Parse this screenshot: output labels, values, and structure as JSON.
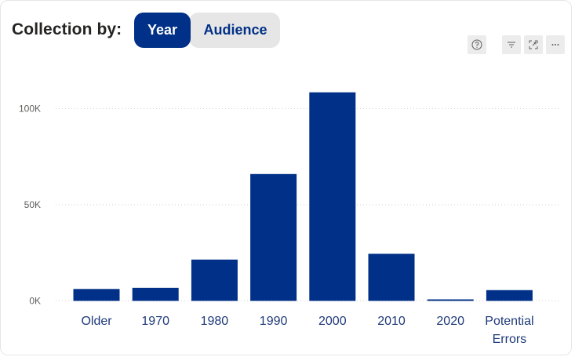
{
  "header": {
    "label": "Collection by:",
    "options": [
      {
        "label": "Year",
        "active": true
      },
      {
        "label": "Audience",
        "active": false
      }
    ]
  },
  "toolbar": {
    "icons": [
      "help-icon",
      "filter-icon",
      "focus-mode-icon",
      "more-options-icon"
    ]
  },
  "colors": {
    "accent": "#003087",
    "inactive_button": "#e6e6e6",
    "gridline": "#d0d0d0"
  },
  "chart_data": {
    "type": "bar",
    "categories": [
      "Older",
      "1970",
      "1980",
      "1990",
      "2000",
      "2010",
      "2020",
      "Potential Errors"
    ],
    "category_lines": [
      [
        "Older"
      ],
      [
        "1970"
      ],
      [
        "1980"
      ],
      [
        "1990"
      ],
      [
        "2000"
      ],
      [
        "2010"
      ],
      [
        "2020"
      ],
      [
        "Potential",
        "Errors"
      ]
    ],
    "values": [
      6200,
      6800,
      21500,
      66000,
      108500,
      24500,
      800,
      5600
    ],
    "title": "",
    "xlabel": "",
    "ylabel": "",
    "ylim": [
      0,
      100000
    ],
    "yticks": [
      0,
      50000,
      100000
    ],
    "ytick_labels": [
      "0K",
      "50K",
      "100K"
    ],
    "grid": true,
    "color": "#003087"
  }
}
